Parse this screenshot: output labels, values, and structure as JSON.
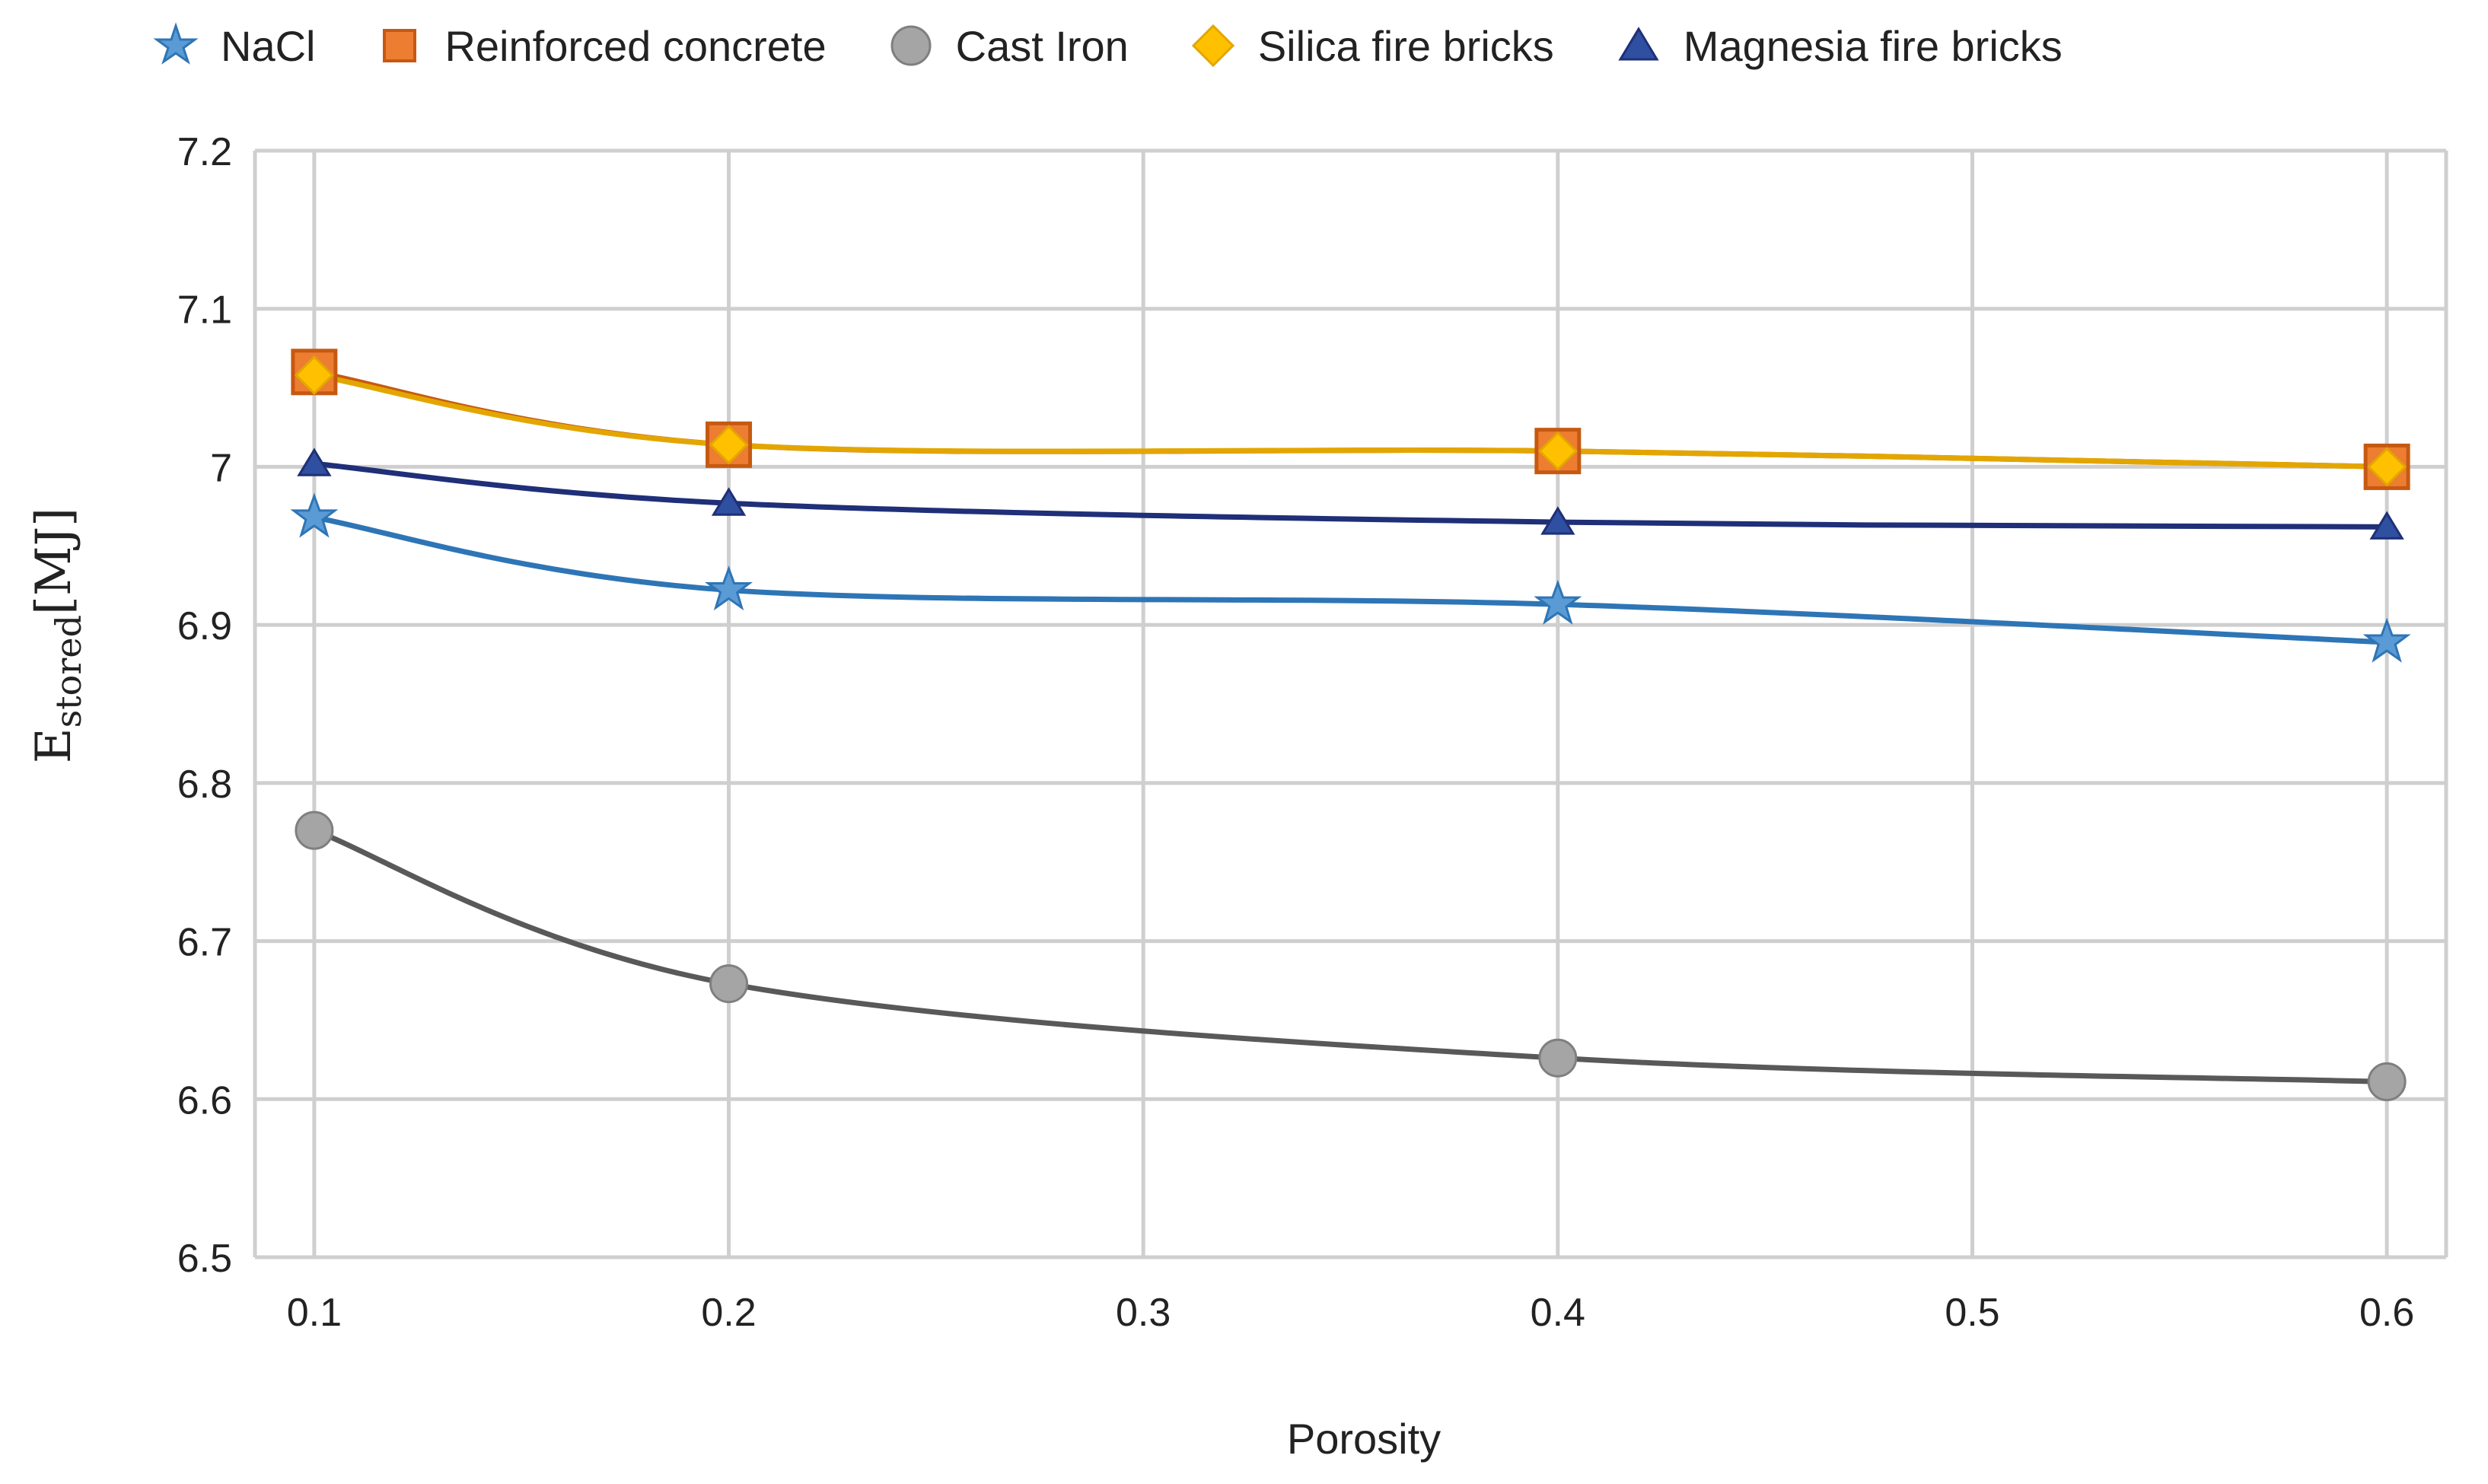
{
  "chart_data": {
    "type": "line",
    "title": "",
    "xlabel": "Porosity",
    "ylabel_main": "E",
    "ylabel_sub": "stored",
    "ylabel_unit": "[MJ]",
    "x": [
      0.1,
      0.2,
      0.3,
      0.4,
      0.5,
      0.6
    ],
    "x_tick_labels": [
      "0.1",
      "0.2",
      "0.3",
      "0.4",
      "0.5",
      "0.6"
    ],
    "xlim": [
      0.0857,
      0.6143
    ],
    "ylim": [
      6.5,
      7.2
    ],
    "y_ticks": [
      6.5,
      6.6,
      6.7,
      6.8,
      6.9,
      7.0,
      7.1,
      7.2
    ],
    "y_tick_labels": [
      "6.5",
      "6.6",
      "6.7",
      "6.8",
      "6.9",
      "7",
      "7.1",
      "7.2"
    ],
    "grid": true,
    "legend_position": "top",
    "series": [
      {
        "name": "NaCl",
        "marker": "star",
        "line_color": "#2e75b6",
        "fill": "#5b9bd5",
        "edge": "#2e75b6",
        "x": [
          0.1,
          0.2,
          0.4,
          0.6
        ],
        "values": [
          6.968,
          6.922,
          6.913,
          6.889
        ]
      },
      {
        "name": "Reinforced concrete",
        "marker": "square",
        "line_color": "#c65911",
        "fill": "#ed7d31",
        "edge": "#c65911",
        "x": [
          0.1,
          0.2,
          0.4,
          0.6
        ],
        "values": [
          7.06,
          7.014,
          7.01,
          7.0
        ]
      },
      {
        "name": "Cast Iron",
        "marker": "circle",
        "line_color": "#595959",
        "fill": "#a5a5a5",
        "edge": "#7f7f7f",
        "x": [
          0.1,
          0.2,
          0.4,
          0.6
        ],
        "values": [
          6.77,
          6.673,
          6.626,
          6.611
        ]
      },
      {
        "name": "Silica fire bricks",
        "marker": "diamond",
        "line_color": "#e3a600",
        "fill": "#ffc000",
        "edge": "#e3a600",
        "x": [
          0.1,
          0.2,
          0.4,
          0.6
        ],
        "values": [
          7.058,
          7.014,
          7.01,
          7.0
        ]
      },
      {
        "name": "Magnesia fire bricks",
        "marker": "triangle",
        "line_color": "#1f2f78",
        "fill": "#2f4fa0",
        "edge": "#1f2f78",
        "x": [
          0.1,
          0.2,
          0.4,
          0.6
        ],
        "values": [
          7.002,
          6.977,
          6.965,
          6.962
        ]
      }
    ]
  }
}
